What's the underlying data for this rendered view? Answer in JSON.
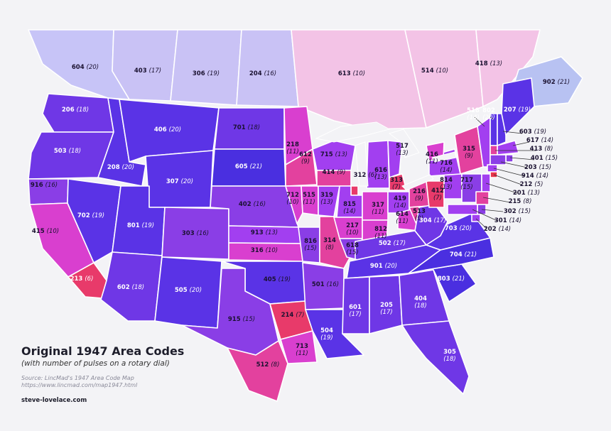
{
  "title": "Original 1947 Area Codes",
  "subtitle": "(with number of pulses on a rotary dial)",
  "source": "Source: LincMad's 1947 Area Code Map",
  "source_url": "https://www.lincmad.com/map1947.html",
  "credit": "steve-lovelace.com",
  "colors": {
    "background": "#f3f3f6",
    "pulse_scale": [
      "#e8334a",
      "#e83a6a",
      "#e3419e",
      "#d93fcf",
      "#c23fe8",
      "#a23ff0",
      "#8a3ee6",
      "#6f37e6",
      "#5a33e6",
      "#4a2fe0"
    ],
    "canada_pale": "#f3c3e6",
    "canada_lavender": "#c9c2f5",
    "canada_blue": "#b8c2f2"
  },
  "area_codes": [
    {
      "code": "604",
      "pulses": "20",
      "region": "British Columbia"
    },
    {
      "code": "403",
      "pulses": "17",
      "region": "Alberta"
    },
    {
      "code": "306",
      "pulses": "19",
      "region": "Saskatchewan"
    },
    {
      "code": "204",
      "pulses": "16",
      "region": "Manitoba"
    },
    {
      "code": "613",
      "pulses": "10",
      "region": "Ontario"
    },
    {
      "code": "514",
      "pulses": "10",
      "region": "Quebec"
    },
    {
      "code": "418",
      "pulses": "13",
      "region": "Eastern Quebec"
    },
    {
      "code": "902",
      "pulses": "21",
      "region": "Maritimes"
    },
    {
      "code": "206",
      "pulses": "18",
      "region": "Washington"
    },
    {
      "code": "503",
      "pulses": "18",
      "region": "Oregon"
    },
    {
      "code": "916",
      "pulses": "16",
      "region": "Northern California"
    },
    {
      "code": "415",
      "pulses": "10",
      "region": "Central California"
    },
    {
      "code": "213",
      "pulses": "6",
      "region": "Southern California"
    },
    {
      "code": "208",
      "pulses": "20",
      "region": "Idaho"
    },
    {
      "code": "702",
      "pulses": "19",
      "region": "Nevada"
    },
    {
      "code": "406",
      "pulses": "20",
      "region": "Montana"
    },
    {
      "code": "307",
      "pulses": "20",
      "region": "Wyoming"
    },
    {
      "code": "801",
      "pulses": "19",
      "region": "Utah"
    },
    {
      "code": "602",
      "pulses": "18",
      "region": "Arizona"
    },
    {
      "code": "303",
      "pulses": "16",
      "region": "Colorado"
    },
    {
      "code": "505",
      "pulses": "20",
      "region": "New Mexico"
    },
    {
      "code": "701",
      "pulses": "18",
      "region": "North Dakota"
    },
    {
      "code": "605",
      "pulses": "21",
      "region": "South Dakota"
    },
    {
      "code": "402",
      "pulses": "16",
      "region": "Nebraska"
    },
    {
      "code": "913",
      "pulses": "13",
      "region": "Kansas North"
    },
    {
      "code": "316",
      "pulses": "10",
      "region": "Kansas South"
    },
    {
      "code": "405",
      "pulses": "19",
      "region": "Oklahoma"
    },
    {
      "code": "915",
      "pulses": "15",
      "region": "West Texas"
    },
    {
      "code": "214",
      "pulses": "7",
      "region": "Dallas"
    },
    {
      "code": "713",
      "pulses": "11",
      "region": "Houston"
    },
    {
      "code": "512",
      "pulses": "8",
      "region": "South Texas"
    },
    {
      "code": "218",
      "pulses": "11",
      "region": "North Minnesota"
    },
    {
      "code": "612",
      "pulses": "9",
      "region": "South Minnesota"
    },
    {
      "code": "712",
      "pulses": "10",
      "region": "West Iowa"
    },
    {
      "code": "515",
      "pulses": "11",
      "region": "Central Iowa"
    },
    {
      "code": "319",
      "pulses": "13",
      "region": "East Iowa"
    },
    {
      "code": "816",
      "pulses": "15",
      "region": "West Missouri"
    },
    {
      "code": "314",
      "pulses": "8",
      "region": "East Missouri"
    },
    {
      "code": "501",
      "pulses": "16",
      "region": "Arkansas"
    },
    {
      "code": "504",
      "pulses": "19",
      "region": "Louisiana"
    },
    {
      "code": "715",
      "pulses": "13",
      "region": "North Wisconsin"
    },
    {
      "code": "414",
      "pulses": "9",
      "region": "South Wisconsin"
    },
    {
      "code": "312",
      "pulses": "6",
      "region": "Chicago"
    },
    {
      "code": "815",
      "pulses": "14",
      "region": "North Illinois"
    },
    {
      "code": "217",
      "pulses": "10",
      "region": "Central Illinois"
    },
    {
      "code": "618",
      "pulses": "15",
      "region": "South Illinois"
    },
    {
      "code": "616",
      "pulses": "13",
      "region": "West Michigan"
    },
    {
      "code": "517",
      "pulses": "13",
      "region": "Central Michigan"
    },
    {
      "code": "313",
      "pulses": "7",
      "region": "Detroit"
    },
    {
      "code": "317",
      "pulses": "11",
      "region": "North Indiana"
    },
    {
      "code": "812",
      "pulses": "11",
      "region": "South Indiana"
    },
    {
      "code": "419",
      "pulses": "14",
      "region": "NW Ohio"
    },
    {
      "code": "216",
      "pulses": "9",
      "region": "NE Ohio"
    },
    {
      "code": "614",
      "pulses": "11",
      "region": "SE Ohio"
    },
    {
      "code": "513",
      "pulses": "9",
      "region": "SW Ohio"
    },
    {
      "code": "502",
      "pulses": "17",
      "region": "Kentucky"
    },
    {
      "code": "901",
      "pulses": "20",
      "region": "Tennessee"
    },
    {
      "code": "601",
      "pulses": "17",
      "region": "Mississippi"
    },
    {
      "code": "205",
      "pulses": "17",
      "region": "Alabama"
    },
    {
      "code": "404",
      "pulses": "18",
      "region": "Georgia"
    },
    {
      "code": "305",
      "pulses": "18",
      "region": "Florida"
    },
    {
      "code": "803",
      "pulses": "21",
      "region": "South Carolina"
    },
    {
      "code": "704",
      "pulses": "21",
      "region": "North Carolina"
    },
    {
      "code": "703",
      "pulses": "20",
      "region": "Virginia"
    },
    {
      "code": "304",
      "pulses": "17",
      "region": "West Virginia"
    },
    {
      "code": "412",
      "pulses": "7",
      "region": "Pittsburgh"
    },
    {
      "code": "814",
      "pulses": "13",
      "region": "Central Pennsylvania"
    },
    {
      "code": "717",
      "pulses": "15",
      "region": "East Pennsylvania"
    },
    {
      "code": "716",
      "pulses": "14",
      "region": "West New York"
    },
    {
      "code": "315",
      "pulses": "9",
      "region": "Central New York"
    },
    {
      "code": "518",
      "pulses": "14",
      "region": "East New York"
    },
    {
      "code": "802",
      "pulses": "20",
      "region": "Vermont"
    },
    {
      "code": "207",
      "pulses": "19",
      "region": "Maine"
    },
    {
      "code": "603",
      "pulses": "19",
      "region": "New Hampshire"
    },
    {
      "code": "617",
      "pulses": "14",
      "region": "Massachusetts"
    },
    {
      "code": "413",
      "pulses": "8",
      "region": "West Massachusetts"
    },
    {
      "code": "401",
      "pulses": "15",
      "region": "Rhode Island"
    },
    {
      "code": "203",
      "pulses": "15",
      "region": "Connecticut"
    },
    {
      "code": "914",
      "pulses": "14",
      "region": "Westchester"
    },
    {
      "code": "212",
      "pulses": "5",
      "region": "New York City"
    },
    {
      "code": "201",
      "pulses": "13",
      "region": "North New Jersey"
    },
    {
      "code": "215",
      "pulses": "8",
      "region": "Philadelphia"
    },
    {
      "code": "302",
      "pulses": "15",
      "region": "Delaware"
    },
    {
      "code": "301",
      "pulses": "14",
      "region": "Maryland"
    },
    {
      "code": "202",
      "pulses": "14",
      "region": "Washington DC"
    },
    {
      "code": "416",
      "pulses": "11",
      "region": "Toronto"
    }
  ]
}
